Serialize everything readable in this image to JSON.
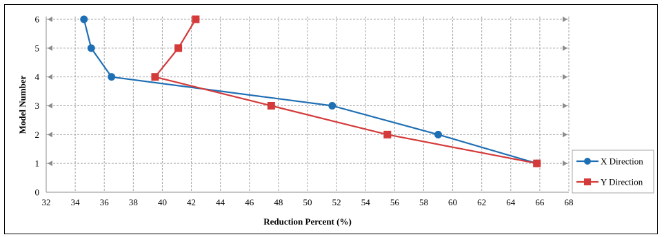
{
  "chart_data": {
    "type": "line",
    "title": "",
    "xlabel": "Reduction Percent (%)",
    "ylabel": "Model Number",
    "xlim": [
      32,
      68
    ],
    "ylim": [
      0,
      6
    ],
    "xticks": [
      "32",
      "34",
      "36",
      "38",
      "40",
      "42",
      "44",
      "46",
      "48",
      "50",
      "52",
      "54",
      "56",
      "58",
      "60",
      "62",
      "64",
      "66",
      "68"
    ],
    "yticks": [
      "0",
      "1",
      "2",
      "3",
      "4",
      "5",
      "6"
    ],
    "grid": true,
    "legend_position": "right-bottom",
    "series": [
      {
        "name": "X Direction",
        "color": "#1f6fb4",
        "marker": "circle",
        "points": [
          [
            65.8,
            1
          ],
          [
            59.0,
            2
          ],
          [
            51.7,
            3
          ],
          [
            36.5,
            4
          ],
          [
            35.1,
            5
          ],
          [
            34.6,
            6
          ]
        ]
      },
      {
        "name": "Y Direction",
        "color": "#d43a3a",
        "marker": "square",
        "points": [
          [
            65.8,
            1
          ],
          [
            55.5,
            2
          ],
          [
            47.5,
            3
          ],
          [
            39.5,
            4
          ],
          [
            41.1,
            5
          ],
          [
            42.3,
            6
          ]
        ]
      }
    ]
  }
}
